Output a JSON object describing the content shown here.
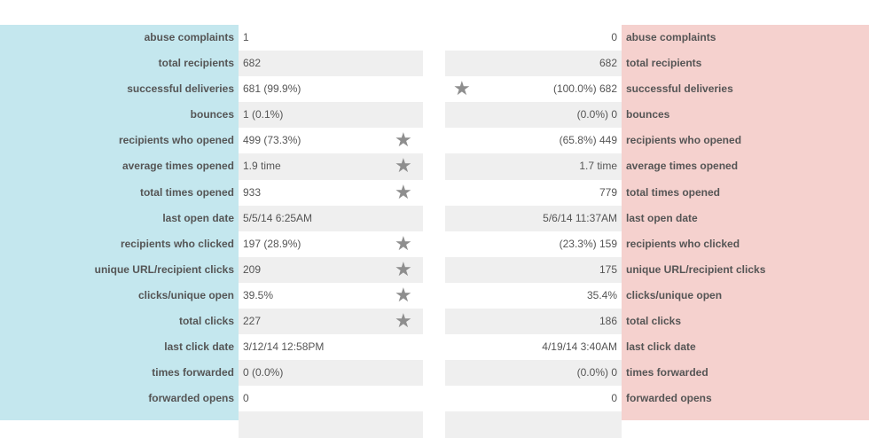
{
  "rows": [
    {
      "label_left": "abuse complaints",
      "value_left": "1",
      "value_right": "0",
      "label_right": "abuse complaints",
      "star_left": false,
      "star_right": false
    },
    {
      "label_left": "total recipients",
      "value_left": "682",
      "value_right": "682",
      "label_right": "total recipients",
      "star_left": false,
      "star_right": false
    },
    {
      "label_left": "successful deliveries",
      "value_left": "681 (99.9%)",
      "value_right": "(100.0%) 682",
      "label_right": "successful deliveries",
      "star_left": false,
      "star_right": true
    },
    {
      "label_left": "bounces",
      "value_left": "1 (0.1%)",
      "value_right": "(0.0%) 0",
      "label_right": "bounces",
      "star_left": false,
      "star_right": false
    },
    {
      "label_left": "recipients who opened",
      "value_left": "499 (73.3%)",
      "value_right": "(65.8%) 449",
      "label_right": "recipients who opened",
      "star_left": true,
      "star_right": false
    },
    {
      "label_left": "average times opened",
      "value_left": "1.9 time",
      "value_right": "1.7 time",
      "label_right": "average times opened",
      "star_left": true,
      "star_right": false
    },
    {
      "label_left": "total times opened",
      "value_left": "933",
      "value_right": "779",
      "label_right": "total times opened",
      "star_left": true,
      "star_right": false
    },
    {
      "label_left": "last open date",
      "value_left": "5/5/14 6:25AM",
      "value_right": "5/6/14 11:37AM",
      "label_right": "last open date",
      "star_left": false,
      "star_right": false
    },
    {
      "label_left": "recipients who clicked",
      "value_left": "197 (28.9%)",
      "value_right": "(23.3%) 159",
      "label_right": "recipients who clicked",
      "star_left": true,
      "star_right": false
    },
    {
      "label_left": "unique URL/recipient clicks",
      "value_left": "209",
      "value_right": "175",
      "label_right": "unique URL/recipient clicks",
      "star_left": true,
      "star_right": false
    },
    {
      "label_left": "clicks/unique open",
      "value_left": "39.5%",
      "value_right": "35.4%",
      "label_right": "clicks/unique open",
      "star_left": true,
      "star_right": false
    },
    {
      "label_left": "total clicks",
      "value_left": "227",
      "value_right": "186",
      "label_right": "total clicks",
      "star_left": true,
      "star_right": false
    },
    {
      "label_left": "last click date",
      "value_left": "3/12/14 12:58PM",
      "value_right": "4/19/14 3:40AM",
      "label_right": "last click date",
      "star_left": false,
      "star_right": false
    },
    {
      "label_left": "times forwarded",
      "value_left": "0 (0.0%)",
      "value_right": "(0.0%) 0",
      "label_right": "times forwarded",
      "star_left": false,
      "star_right": false
    },
    {
      "label_left": "forwarded opens",
      "value_left": "0",
      "value_right": "0",
      "label_right": "forwarded opens",
      "star_left": false,
      "star_right": false
    },
    {
      "label_left": "",
      "value_left": "",
      "value_right": "",
      "label_right": "",
      "star_left": false,
      "star_right": false
    }
  ],
  "icons": {
    "winner": "star-icon"
  },
  "colors": {
    "left_band": "#c4e7ee",
    "right_band": "#f5d1ce",
    "shade": "#efefef",
    "star": "#8e8e8e"
  }
}
